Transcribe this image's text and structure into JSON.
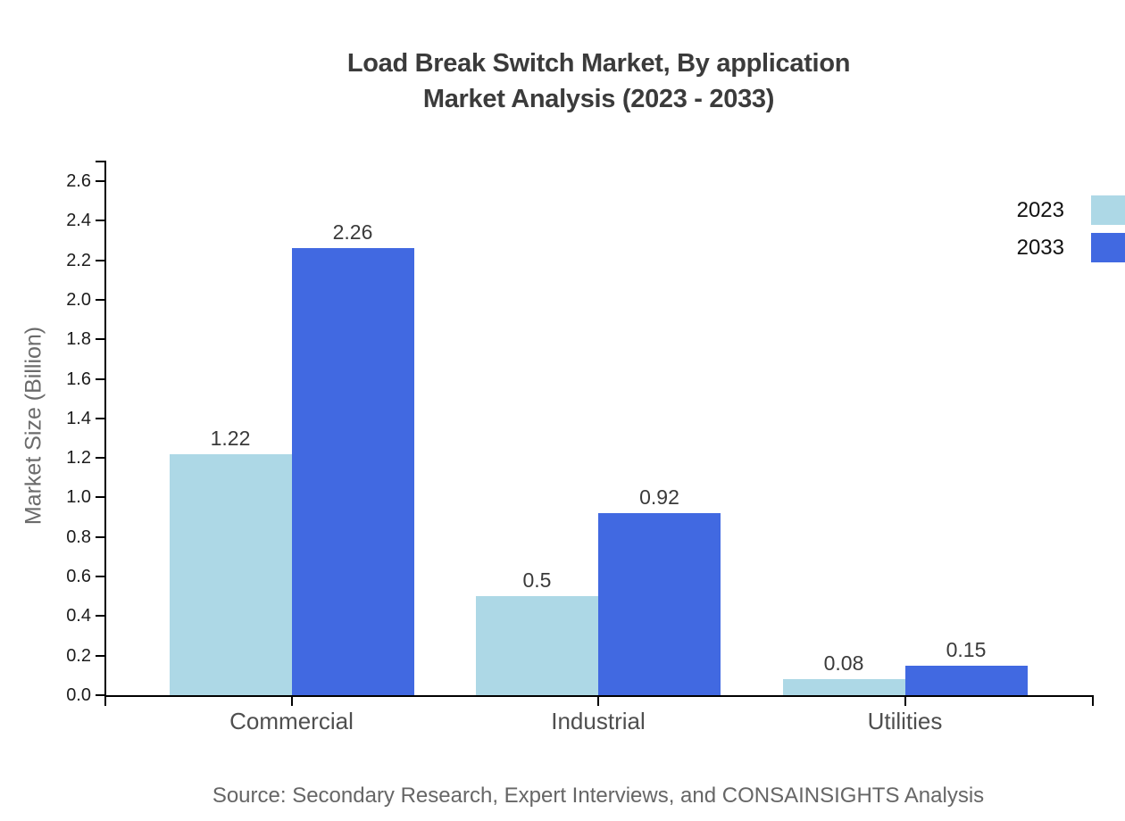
{
  "title": {
    "line1": "Load Break Switch Market, By application",
    "line2": "Market Analysis (2023 - 2033)"
  },
  "y_axis": {
    "label": "Market Size (Billion)"
  },
  "source_note": "Source: Secondary Research, Expert Interviews, and CONSAINSIGHTS Analysis",
  "legend": {
    "position": "top-right",
    "items": [
      {
        "label": "2023",
        "color": "#ADD8E6"
      },
      {
        "label": "2033",
        "color": "#4169E1"
      }
    ]
  },
  "chart_data": {
    "type": "bar",
    "title": "Load Break Switch Market, By application Market Analysis (2023 - 2033)",
    "categories": [
      "Commercial",
      "Industrial",
      "Utilities"
    ],
    "series": [
      {
        "name": "2023",
        "color": "#ADD8E6",
        "values": [
          1.22,
          0.5,
          0.08
        ],
        "value_labels": [
          "1.22",
          "0.5",
          "0.08"
        ]
      },
      {
        "name": "2033",
        "color": "#4169E1",
        "values": [
          2.26,
          0.92,
          0.15
        ],
        "value_labels": [
          "2.26",
          "0.92",
          "0.15"
        ]
      }
    ],
    "xlabel": "",
    "ylabel": "Market Size (Billion)",
    "ylim": [
      0,
      2.7
    ],
    "yticks": [
      0.0,
      0.2,
      0.4,
      0.6,
      0.8,
      1.0,
      1.2,
      1.4,
      1.6,
      1.8,
      2.0,
      2.2,
      2.4,
      2.6
    ],
    "ytick_labels": [
      "0.0",
      "0.2",
      "0.4",
      "0.6",
      "0.8",
      "1.0",
      "1.2",
      "1.4",
      "1.6",
      "1.8",
      "2.0",
      "2.2",
      "2.4",
      "2.6"
    ],
    "grid": false,
    "legend_position": "top-right",
    "value_labels_shown": true
  }
}
